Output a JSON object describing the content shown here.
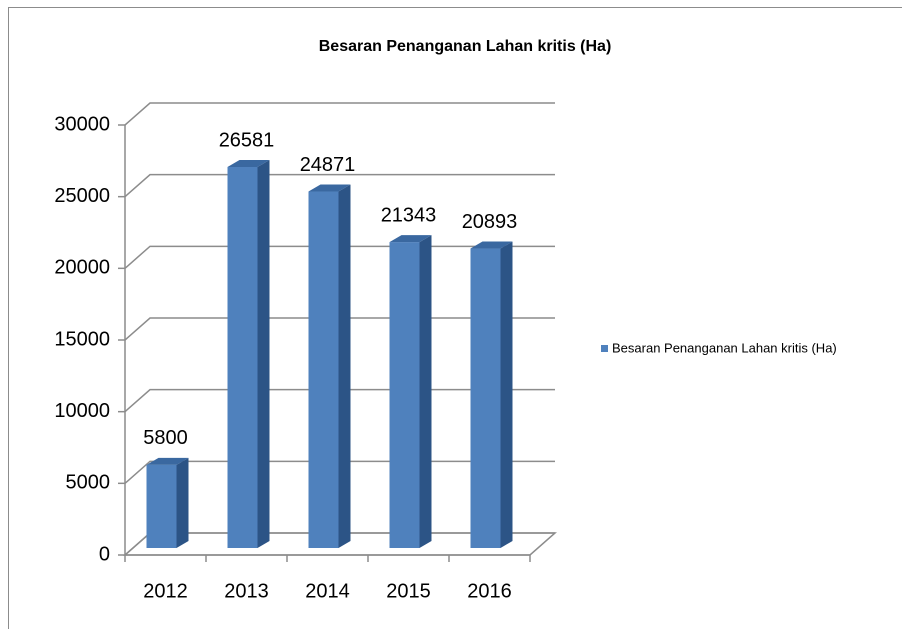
{
  "chart_data": {
    "type": "bar3d",
    "title": "Besaran Penanganan Lahan kritis (Ha)",
    "categories": [
      "2012",
      "2013",
      "2014",
      "2015",
      "2016"
    ],
    "series": [
      {
        "name": "Besaran Penanganan Lahan kritis (Ha)",
        "color": "#4f81bd",
        "values": [
          5800,
          26581,
          24871,
          21343,
          20893
        ]
      }
    ],
    "ylim": [
      0,
      30000
    ],
    "yticks": [
      0,
      5000,
      10000,
      15000,
      20000,
      25000,
      30000
    ],
    "grid": true,
    "legend": "right"
  }
}
